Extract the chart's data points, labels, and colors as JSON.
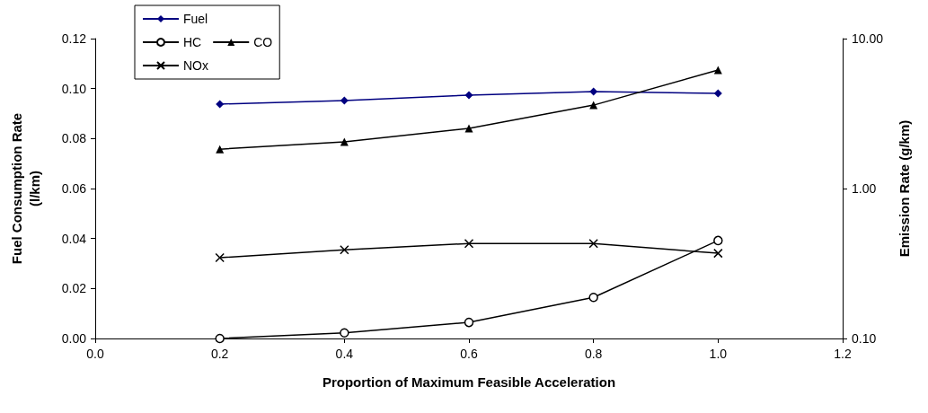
{
  "chart_data": {
    "type": "line",
    "xlabel": "Proportion of Maximum Feasible Acceleration",
    "ylabel": "Fuel Consumption Rate\n(l/km)",
    "y2label": "Emission Rate (g/km)",
    "x": [
      0.2,
      0.4,
      0.6,
      0.8,
      1.0
    ],
    "series": [
      {
        "name": "Fuel",
        "color": "#000080",
        "marker": "diamond",
        "values": [
          0.0938,
          0.0952,
          0.0974,
          0.0988,
          0.0981
        ]
      },
      {
        "name": "HC",
        "color": "#000000",
        "marker": "circle",
        "axis": "y2",
        "values": [
          0.1,
          0.109,
          0.128,
          0.188,
          0.45
        ]
      },
      {
        "name": "CO",
        "color": "#000000",
        "marker": "triangle",
        "axis": "y2",
        "values": [
          1.83,
          2.05,
          2.52,
          3.6,
          6.17
        ]
      },
      {
        "name": "NOx",
        "color": "#000000",
        "marker": "cross",
        "axis": "y2",
        "values": [
          0.346,
          0.39,
          0.43,
          0.43,
          0.37
        ]
      }
    ],
    "xlim": [
      0,
      1.2
    ],
    "xticks": [
      {
        "value": 0,
        "label": "0.0"
      },
      {
        "value": 0.2,
        "label": "0.2"
      },
      {
        "value": 0.4,
        "label": "0.4"
      },
      {
        "value": 0.6,
        "label": "0.6"
      },
      {
        "value": 0.8,
        "label": "0.8"
      },
      {
        "value": 1.0,
        "label": "1.0"
      },
      {
        "value": 1.2,
        "label": "1.2"
      }
    ],
    "ylim": [
      0,
      0.12
    ],
    "yticks": [
      {
        "value": 0,
        "label": "0.00"
      },
      {
        "value": 0.02,
        "label": "0.02"
      },
      {
        "value": 0.04,
        "label": "0.04"
      },
      {
        "value": 0.06,
        "label": "0.06"
      },
      {
        "value": 0.08,
        "label": "0.08"
      },
      {
        "value": 0.1,
        "label": "0.10"
      },
      {
        "value": 0.12,
        "label": "0.12"
      }
    ],
    "y2lim": [
      0.1,
      10
    ],
    "y2ticks": [
      {
        "value": 0.1,
        "label": "0.10"
      },
      {
        "value": 1,
        "label": "1.00"
      },
      {
        "value": 10,
        "label": "10.00"
      }
    ],
    "log": "y2",
    "grid": false,
    "legend": "top left",
    "line_style": "solid"
  }
}
